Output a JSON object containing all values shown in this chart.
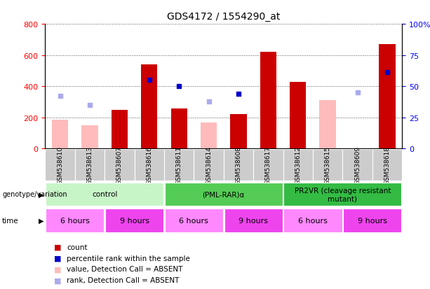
{
  "title": "GDS4172 / 1554290_at",
  "samples": [
    "GSM538610",
    "GSM538613",
    "GSM538607",
    "GSM538616",
    "GSM538611",
    "GSM538614",
    "GSM538608",
    "GSM538617",
    "GSM538612",
    "GSM538615",
    "GSM538609",
    "GSM538618"
  ],
  "count_values": [
    null,
    null,
    250,
    540,
    255,
    null,
    220,
    620,
    430,
    null,
    null,
    670
  ],
  "count_absent": [
    185,
    150,
    null,
    null,
    null,
    165,
    null,
    null,
    null,
    310,
    null,
    null
  ],
  "rank_values": [
    null,
    null,
    null,
    440,
    400,
    null,
    350,
    null,
    null,
    null,
    null,
    490
  ],
  "rank_absent": [
    340,
    280,
    null,
    null,
    null,
    300,
    null,
    null,
    null,
    null,
    360,
    null
  ],
  "ylim": [
    0,
    800
  ],
  "y2lim": [
    0,
    100
  ],
  "yticks": [
    0,
    200,
    400,
    600,
    800
  ],
  "ytick_labels": [
    "0",
    "200",
    "400",
    "600",
    "800"
  ],
  "y2ticks": [
    0,
    25,
    50,
    75,
    100
  ],
  "y2tick_labels": [
    "0",
    "25",
    "50",
    "75",
    "100%"
  ],
  "genotype_groups": [
    {
      "label": "control",
      "start": 0,
      "end": 3,
      "color": "#c8f5c8"
    },
    {
      "label": "(PML-RAR)α",
      "start": 4,
      "end": 7,
      "color": "#55cc55"
    },
    {
      "label": "PR2VR (cleavage resistant\nmutant)",
      "start": 8,
      "end": 11,
      "color": "#33bb44"
    }
  ],
  "time_groups": [
    {
      "label": "6 hours",
      "start": 0,
      "end": 1,
      "color": "#ff88ff"
    },
    {
      "label": "9 hours",
      "start": 2,
      "end": 3,
      "color": "#ee44ee"
    },
    {
      "label": "6 hours",
      "start": 4,
      "end": 5,
      "color": "#ff88ff"
    },
    {
      "label": "9 hours",
      "start": 6,
      "end": 7,
      "color": "#ee44ee"
    },
    {
      "label": "6 hours",
      "start": 8,
      "end": 9,
      "color": "#ff88ff"
    },
    {
      "label": "9 hours",
      "start": 10,
      "end": 11,
      "color": "#ee44ee"
    }
  ],
  "count_color": "#cc0000",
  "count_absent_color": "#ffbbbb",
  "rank_color": "#0000cc",
  "rank_absent_color": "#aaaaee",
  "sample_bg_color": "#cccccc",
  "grid_color": "#555555"
}
